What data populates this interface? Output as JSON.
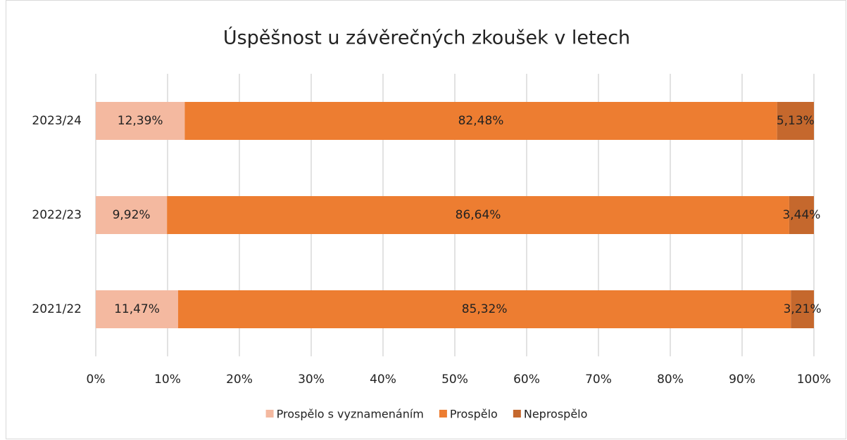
{
  "chart_data": {
    "type": "stacked-bar-horizontal",
    "title": "Úspěšnost u závěrečných zkoušek v letech",
    "categories": [
      "2023/24",
      "2022/23",
      "2021/22"
    ],
    "series": [
      {
        "name": "Prospělo s vyznamenáním",
        "color": "#f4b9a0",
        "values": [
          12.39,
          9.92,
          11.47
        ],
        "value_labels": [
          "12,39%",
          "9,92%",
          "11,47%"
        ]
      },
      {
        "name": "Prospělo",
        "color": "#ed7d31",
        "values": [
          82.48,
          86.64,
          85.32
        ],
        "value_labels": [
          "82,48%",
          "86,64%",
          "85,32%"
        ]
      },
      {
        "name": "Neprospělo",
        "color": "#c5682d",
        "values": [
          5.13,
          3.44,
          3.21
        ],
        "value_labels": [
          "5,13%",
          "3,44%",
          "3,21%"
        ]
      }
    ],
    "xlim": [
      0,
      100
    ],
    "xticks": [
      {
        "value": 0,
        "label": "0%"
      },
      {
        "value": 10,
        "label": "10%"
      },
      {
        "value": 20,
        "label": "20%"
      },
      {
        "value": 30,
        "label": "30%"
      },
      {
        "value": 40,
        "label": "40%"
      },
      {
        "value": 50,
        "label": "50%"
      },
      {
        "value": 60,
        "label": "60%"
      },
      {
        "value": 70,
        "label": "70%"
      },
      {
        "value": 80,
        "label": "80%"
      },
      {
        "value": 90,
        "label": "90%"
      },
      {
        "value": 100,
        "label": "100%"
      }
    ],
    "grid": true,
    "legend": "bottom"
  }
}
